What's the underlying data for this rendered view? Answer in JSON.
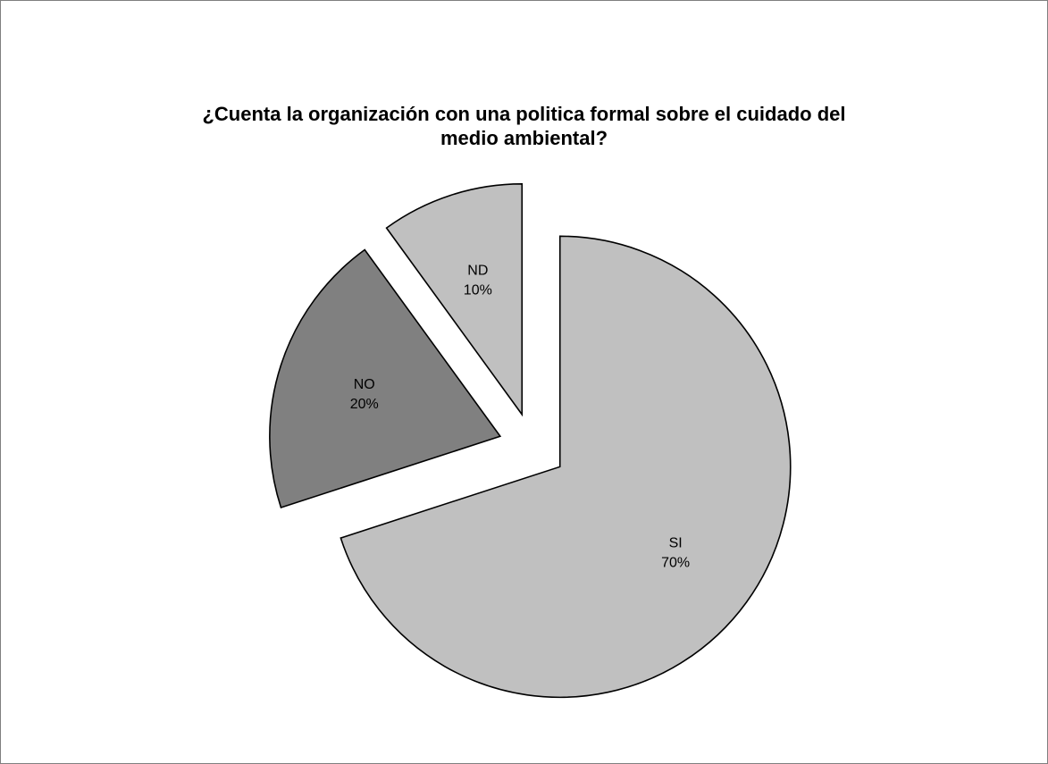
{
  "chart_data": {
    "type": "pie",
    "title_lines": [
      "¿Cuenta la organización con una politica formal sobre el cuidado del",
      "medio ambiental?"
    ],
    "slices": [
      {
        "category": "SI",
        "value": 70,
        "value_label": "70%",
        "color": "#c0c0c0"
      },
      {
        "category": "NO",
        "value": 20,
        "value_label": "20%",
        "color": "#808080"
      },
      {
        "category": "ND",
        "value": 10,
        "value_label": "10%",
        "color": "#c0c0c0"
      }
    ],
    "exploded": true,
    "legend": "none",
    "stroke_color": "#000000"
  }
}
